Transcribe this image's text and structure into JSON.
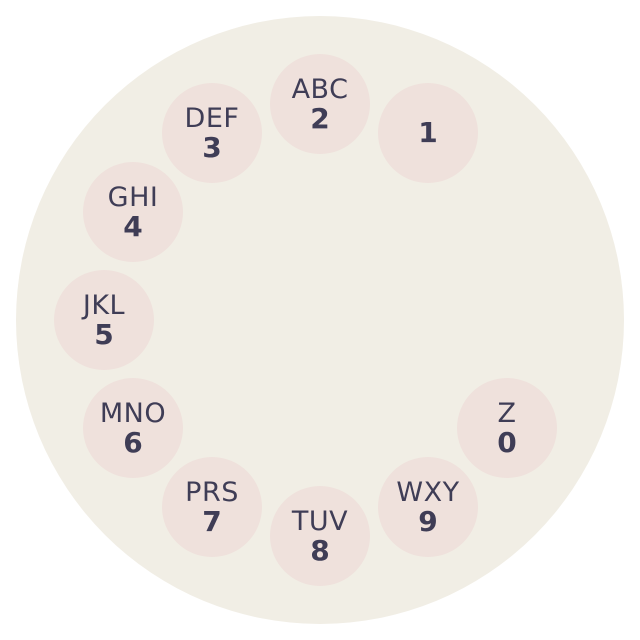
{
  "dial": {
    "holes": [
      {
        "key": "2",
        "letters": "ABC",
        "digit": "2"
      },
      {
        "key": "1",
        "letters": "",
        "digit": "1"
      },
      {
        "key": "3",
        "letters": "DEF",
        "digit": "3"
      },
      {
        "key": "4",
        "letters": "GHI",
        "digit": "4"
      },
      {
        "key": "5",
        "letters": "JKL",
        "digit": "5"
      },
      {
        "key": "6",
        "letters": "MNO",
        "digit": "6"
      },
      {
        "key": "7",
        "letters": "PRS",
        "digit": "7"
      },
      {
        "key": "8",
        "letters": "TUV",
        "digit": "8"
      },
      {
        "key": "9",
        "letters": "WXY",
        "digit": "9"
      },
      {
        "key": "0",
        "letters": "Z",
        "digit": "0"
      }
    ]
  },
  "colors": {
    "face": "#f1eee5",
    "hole": "#efe1dc",
    "text": "#3f3d56"
  }
}
